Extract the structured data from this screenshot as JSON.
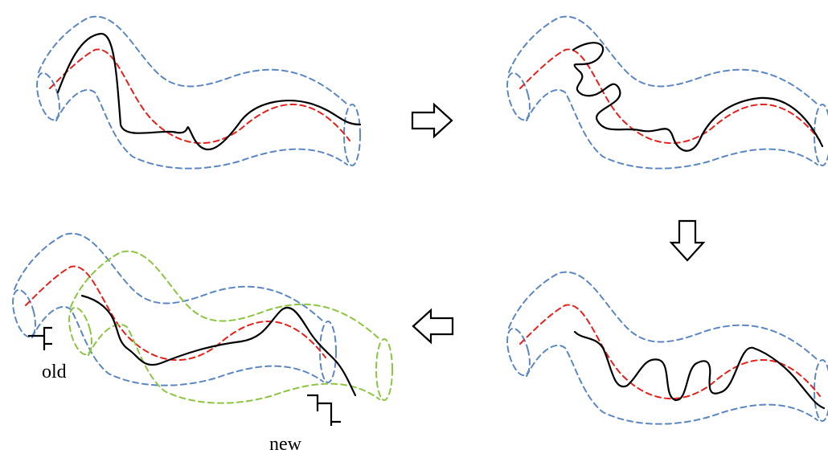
{
  "colors": {
    "tube": "#5b87c5",
    "center_line": "#e8201a",
    "trajectory": "#000000",
    "new_tube": "#8cc63f"
  },
  "labels": {
    "old": "old",
    "new": "new"
  },
  "icons": {
    "arrows": [
      "arrow-right-icon",
      "arrow-down-icon",
      "arrow-left-icon"
    ]
  }
}
